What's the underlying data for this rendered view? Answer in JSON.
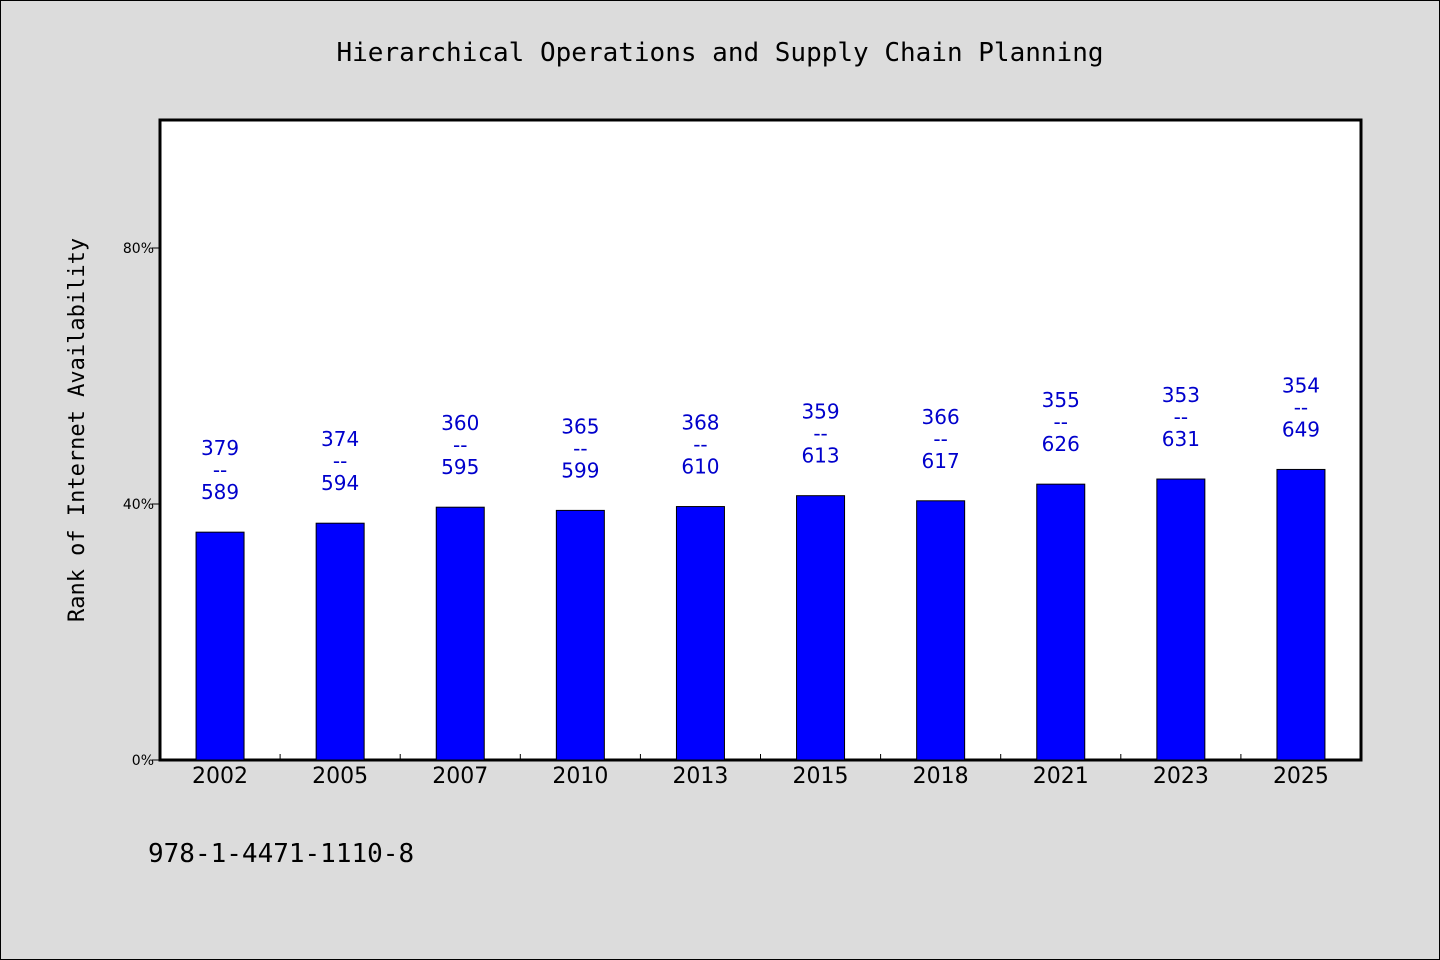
{
  "chart_data": {
    "type": "bar",
    "title": "Hierarchical Operations and Supply Chain Planning",
    "xlabel": "",
    "ylabel": "Rank of Internet Availability",
    "categories": [
      "2002",
      "2005",
      "2007",
      "2010",
      "2013",
      "2015",
      "2018",
      "2021",
      "2023",
      "2025"
    ],
    "values": [
      35.6,
      37.0,
      39.5,
      39.0,
      39.6,
      41.3,
      40.5,
      43.1,
      43.9,
      45.4
    ],
    "value_unit": "%",
    "data_labels": [
      {
        "top": "379",
        "sep": "--",
        "bottom": "589"
      },
      {
        "top": "374",
        "sep": "--",
        "bottom": "594"
      },
      {
        "top": "360",
        "sep": "--",
        "bottom": "595"
      },
      {
        "top": "365",
        "sep": "--",
        "bottom": "599"
      },
      {
        "top": "368",
        "sep": "--",
        "bottom": "610"
      },
      {
        "top": "359",
        "sep": "--",
        "bottom": "613"
      },
      {
        "top": "366",
        "sep": "--",
        "bottom": "617"
      },
      {
        "top": "355",
        "sep": "--",
        "bottom": "626"
      },
      {
        "top": "353",
        "sep": "--",
        "bottom": "631"
      },
      {
        "top": "354",
        "sep": "--",
        "bottom": "649"
      }
    ],
    "ylim": [
      0,
      100
    ],
    "yticks": [
      0,
      40,
      80
    ],
    "ytick_labels": [
      "0%",
      "40%",
      "80%"
    ],
    "grid": false,
    "legend": "none",
    "bar_color": "#0000ff",
    "label_color": "#0000cc"
  },
  "footer": {
    "isbn": "978-1-4471-1110-8"
  }
}
